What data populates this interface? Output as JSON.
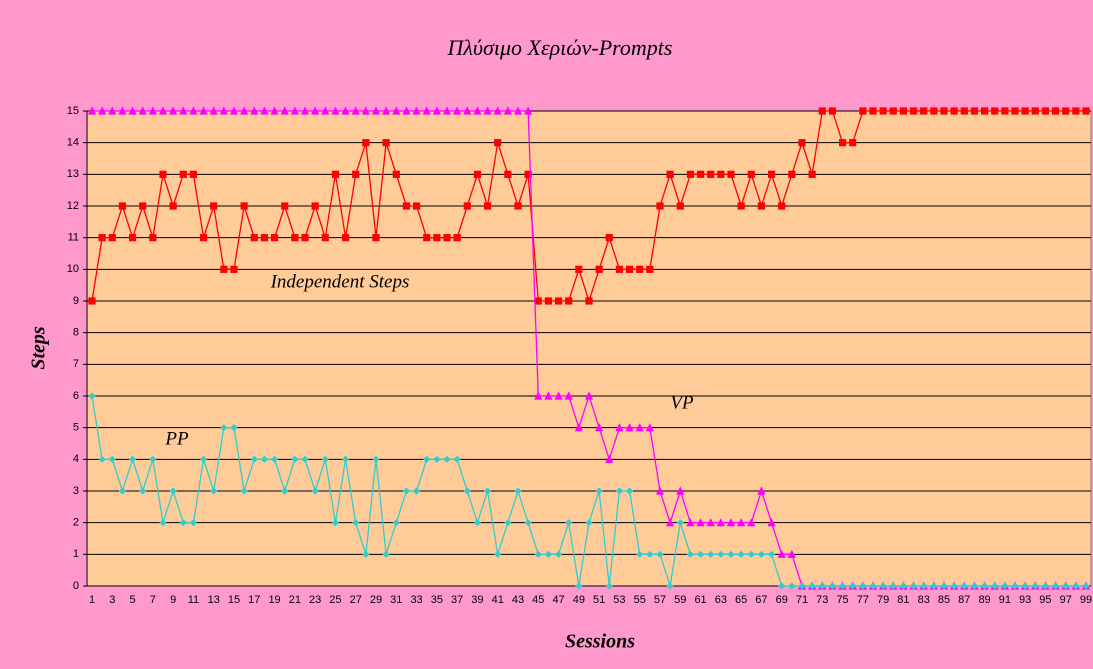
{
  "chart_data": {
    "type": "line",
    "title": "Πλύσιμο Χεριών-Prompts",
    "x_label": "Sessions",
    "y_label": "Steps",
    "categories": [
      1,
      null,
      3,
      null,
      5,
      null,
      7,
      null,
      9,
      null,
      11,
      null,
      13,
      null,
      15,
      null,
      17,
      null,
      19,
      null,
      21,
      null,
      23,
      null,
      25,
      null,
      27,
      null,
      29,
      null,
      31,
      null,
      33,
      null,
      35,
      null,
      37,
      null,
      39,
      null,
      41,
      null,
      43,
      null,
      45,
      null,
      47,
      null,
      49,
      null,
      51,
      null,
      53,
      null,
      55,
      null,
      57,
      null,
      59,
      null,
      61,
      null,
      63,
      null,
      65,
      null,
      67,
      null,
      69,
      null,
      71,
      null,
      73,
      null,
      75,
      null,
      77,
      null,
      79,
      null,
      81,
      null,
      83,
      null,
      85,
      null,
      87,
      null,
      89,
      null,
      91,
      null,
      93,
      null,
      95,
      null,
      97,
      null,
      99
    ],
    "ylim": [
      0,
      15
    ],
    "yticks": [
      0,
      1,
      2,
      3,
      4,
      5,
      6,
      7,
      8,
      9,
      10,
      11,
      12,
      13,
      14,
      15
    ],
    "grid": true,
    "series": [
      {
        "name": "Independent Steps",
        "color": "#ff0000",
        "marker": "square",
        "values": [
          9,
          11,
          11,
          12,
          11,
          12,
          11,
          13,
          12,
          13,
          13,
          11,
          12,
          10,
          10,
          12,
          11,
          11,
          11,
          12,
          11,
          11,
          12,
          11,
          13,
          11,
          13,
          14,
          11,
          14,
          13,
          12,
          12,
          11,
          11,
          11,
          11,
          12,
          13,
          12,
          14,
          13,
          12,
          13,
          9,
          9,
          9,
          9,
          10,
          9,
          10,
          11,
          10,
          10,
          10,
          10,
          12,
          13,
          12,
          13,
          13,
          13,
          13,
          13,
          12,
          13,
          12,
          13,
          12,
          13,
          14,
          13,
          15,
          15,
          14,
          14,
          15,
          15,
          15,
          15,
          15,
          15,
          15,
          15,
          15,
          15,
          15,
          15,
          15,
          15,
          15,
          15,
          15,
          15,
          15,
          15,
          15,
          15,
          15
        ]
      },
      {
        "name": "VP",
        "color": "#ff00ff",
        "marker": "triangle",
        "values": [
          15,
          15,
          15,
          15,
          15,
          15,
          15,
          15,
          15,
          15,
          15,
          15,
          15,
          15,
          15,
          15,
          15,
          15,
          15,
          15,
          15,
          15,
          15,
          15,
          15,
          15,
          15,
          15,
          15,
          15,
          15,
          15,
          15,
          15,
          15,
          15,
          15,
          15,
          15,
          15,
          15,
          15,
          15,
          15,
          6,
          6,
          6,
          6,
          5,
          6,
          5,
          4,
          5,
          5,
          5,
          5,
          3,
          2,
          3,
          2,
          2,
          2,
          2,
          2,
          2,
          2,
          3,
          2,
          1,
          1,
          0,
          0,
          0,
          0,
          0,
          0,
          0,
          0,
          0,
          0,
          0,
          0,
          0,
          0,
          0,
          0,
          0,
          0,
          0,
          0,
          0,
          0,
          0,
          0,
          0,
          0,
          0,
          0,
          0
        ]
      },
      {
        "name": "PP",
        "color": "#33cccc",
        "marker": "diamond",
        "values": [
          6,
          4,
          4,
          3,
          4,
          3,
          4,
          2,
          3,
          2,
          2,
          4,
          3,
          5,
          5,
          3,
          4,
          4,
          4,
          3,
          4,
          4,
          3,
          4,
          2,
          4,
          2,
          1,
          4,
          1,
          2,
          3,
          3,
          4,
          4,
          4,
          4,
          3,
          2,
          3,
          1,
          2,
          3,
          2,
          1,
          1,
          1,
          2,
          0,
          2,
          3,
          0,
          3,
          3,
          1,
          1,
          1,
          0,
          2,
          1,
          1,
          1,
          1,
          1,
          1,
          1,
          1,
          1,
          0,
          0,
          0,
          0,
          0,
          0,
          0,
          0,
          0,
          0,
          0,
          0,
          0,
          0,
          0,
          0,
          0,
          0,
          0,
          0,
          0,
          0,
          0,
          0,
          0,
          0,
          0,
          0,
          0,
          0,
          0
        ]
      }
    ]
  }
}
